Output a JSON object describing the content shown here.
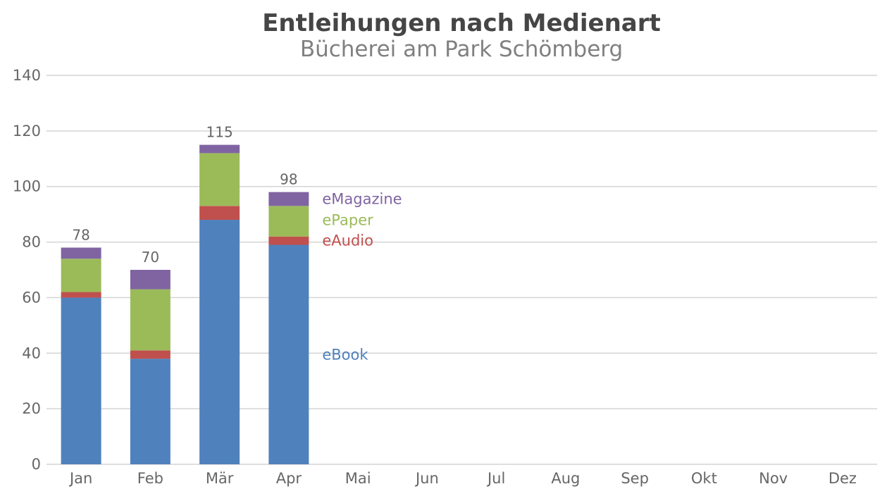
{
  "chart_data": {
    "type": "bar",
    "stacked": true,
    "title": "Entleihungen nach Medienart",
    "subtitle": "Bücherei am Park Schömberg",
    "categories": [
      "Jan",
      "Feb",
      "Mär",
      "Apr",
      "Mai",
      "Jun",
      "Jul",
      "Aug",
      "Sep",
      "Okt",
      "Nov",
      "Dez"
    ],
    "series": [
      {
        "name": "eBook",
        "color": "#4f81bd",
        "values": [
          60,
          38,
          88,
          79,
          null,
          null,
          null,
          null,
          null,
          null,
          null,
          null
        ]
      },
      {
        "name": "eAudio",
        "color": "#c0504d",
        "values": [
          2,
          3,
          5,
          3,
          null,
          null,
          null,
          null,
          null,
          null,
          null,
          null
        ]
      },
      {
        "name": "ePaper",
        "color": "#9bbb59",
        "values": [
          12,
          22,
          19,
          11,
          null,
          null,
          null,
          null,
          null,
          null,
          null,
          null
        ]
      },
      {
        "name": "eMagazine",
        "color": "#8064a2",
        "values": [
          4,
          7,
          3,
          5,
          null,
          null,
          null,
          null,
          null,
          null,
          null,
          null
        ]
      }
    ],
    "totals": [
      78,
      70,
      115,
      98,
      null,
      null,
      null,
      null,
      null,
      null,
      null,
      null
    ],
    "ylim": [
      0,
      140
    ],
    "yticks": [
      0,
      20,
      40,
      60,
      80,
      100,
      120,
      140
    ],
    "grid": true,
    "legend": "inline-right-of-last-bar"
  }
}
